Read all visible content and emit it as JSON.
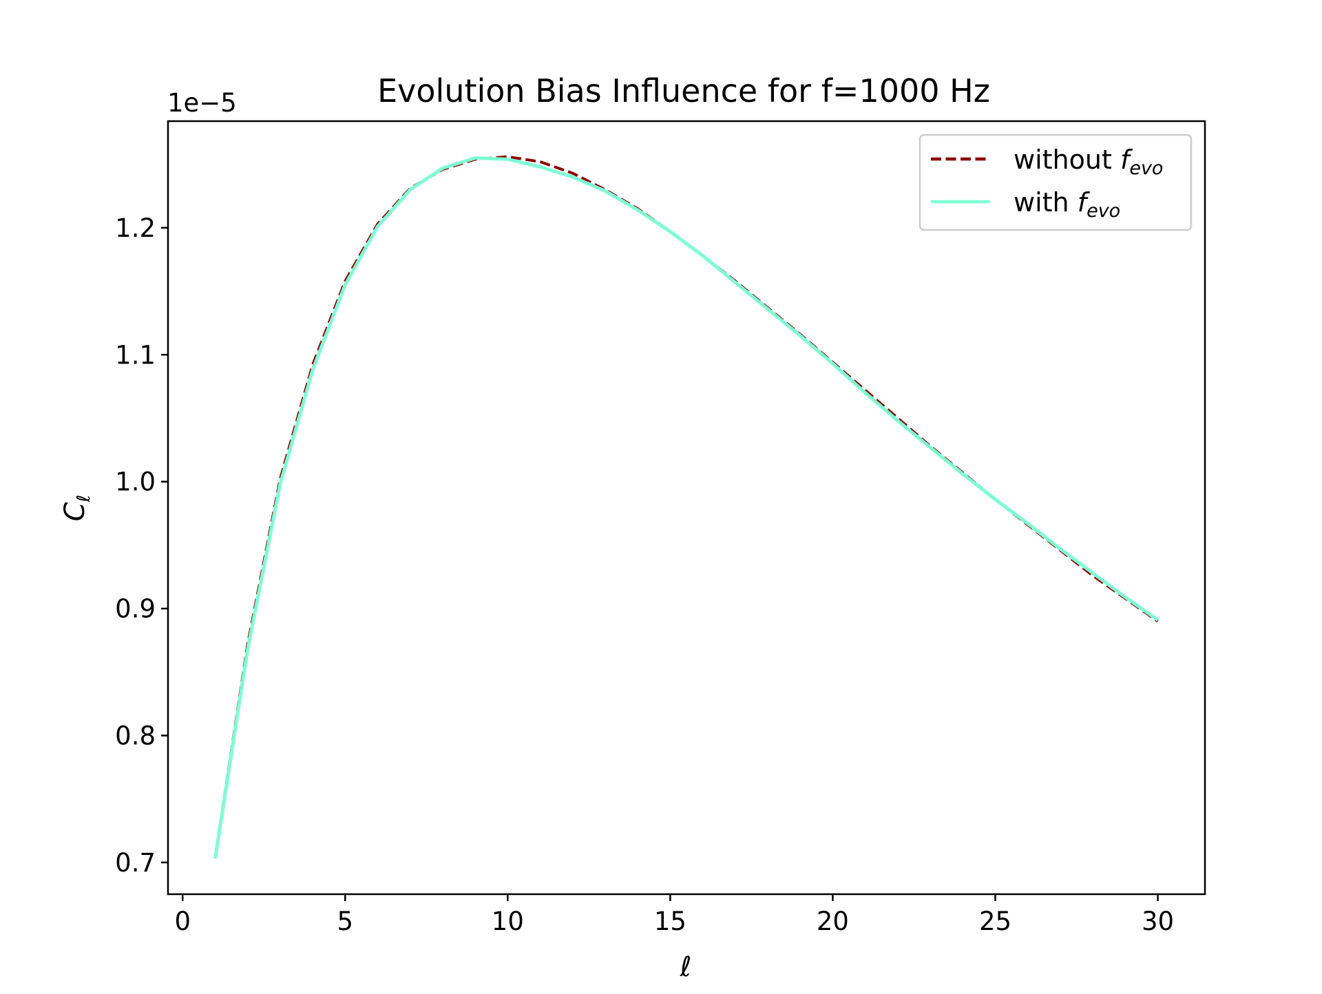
{
  "chart_data": {
    "type": "line",
    "title": "Evolution Bias Influence for f=1000 Hz",
    "xlabel": "ℓ",
    "ylabel": {
      "main": "C",
      "sub": "ℓ"
    },
    "y_offset_label": "1e−5",
    "xlim": [
      -0.45,
      31.45
    ],
    "ylim": [
      0.675,
      1.284
    ],
    "xticks": [
      0,
      5,
      10,
      15,
      20,
      25,
      30
    ],
    "yticks": [
      0.7,
      0.8,
      0.9,
      1.0,
      1.1,
      1.2
    ],
    "ytick_labels": [
      "0.7",
      "0.8",
      "0.9",
      "1.0",
      "1.1",
      "1.2"
    ],
    "grid": false,
    "legend_position": "top-right",
    "x": [
      1,
      2,
      3,
      4,
      5,
      6,
      7,
      8,
      9,
      10,
      11,
      12,
      13,
      14,
      15,
      16,
      17,
      18,
      19,
      20,
      21,
      22,
      23,
      24,
      25,
      26,
      27,
      28,
      29,
      30
    ],
    "series": [
      {
        "legend_main": "without ",
        "legend_math": "f",
        "legend_sub": "evo",
        "color": "#8b0000",
        "style": "dashed",
        "values": [
          0.704,
          0.872,
          1.002,
          1.092,
          1.158,
          1.203,
          1.231,
          1.246,
          1.254,
          1.256,
          1.252,
          1.243,
          1.23,
          1.215,
          1.197,
          1.178,
          1.158,
          1.137,
          1.116,
          1.094,
          1.072,
          1.05,
          1.028,
          1.007,
          0.986,
          0.966,
          0.946,
          0.926,
          0.908,
          0.89
        ]
      },
      {
        "legend_main": "with ",
        "legend_math": "f",
        "legend_sub": "evo",
        "color": "#7fffd4",
        "style": "solid",
        "values": [
          0.703,
          0.868,
          0.998,
          1.088,
          1.155,
          1.201,
          1.23,
          1.247,
          1.255,
          1.254,
          1.248,
          1.24,
          1.229,
          1.214,
          1.197,
          1.178,
          1.157,
          1.136,
          1.115,
          1.093,
          1.07,
          1.048,
          1.027,
          1.006,
          0.986,
          0.967,
          0.947,
          0.928,
          0.909,
          0.891
        ]
      }
    ]
  }
}
